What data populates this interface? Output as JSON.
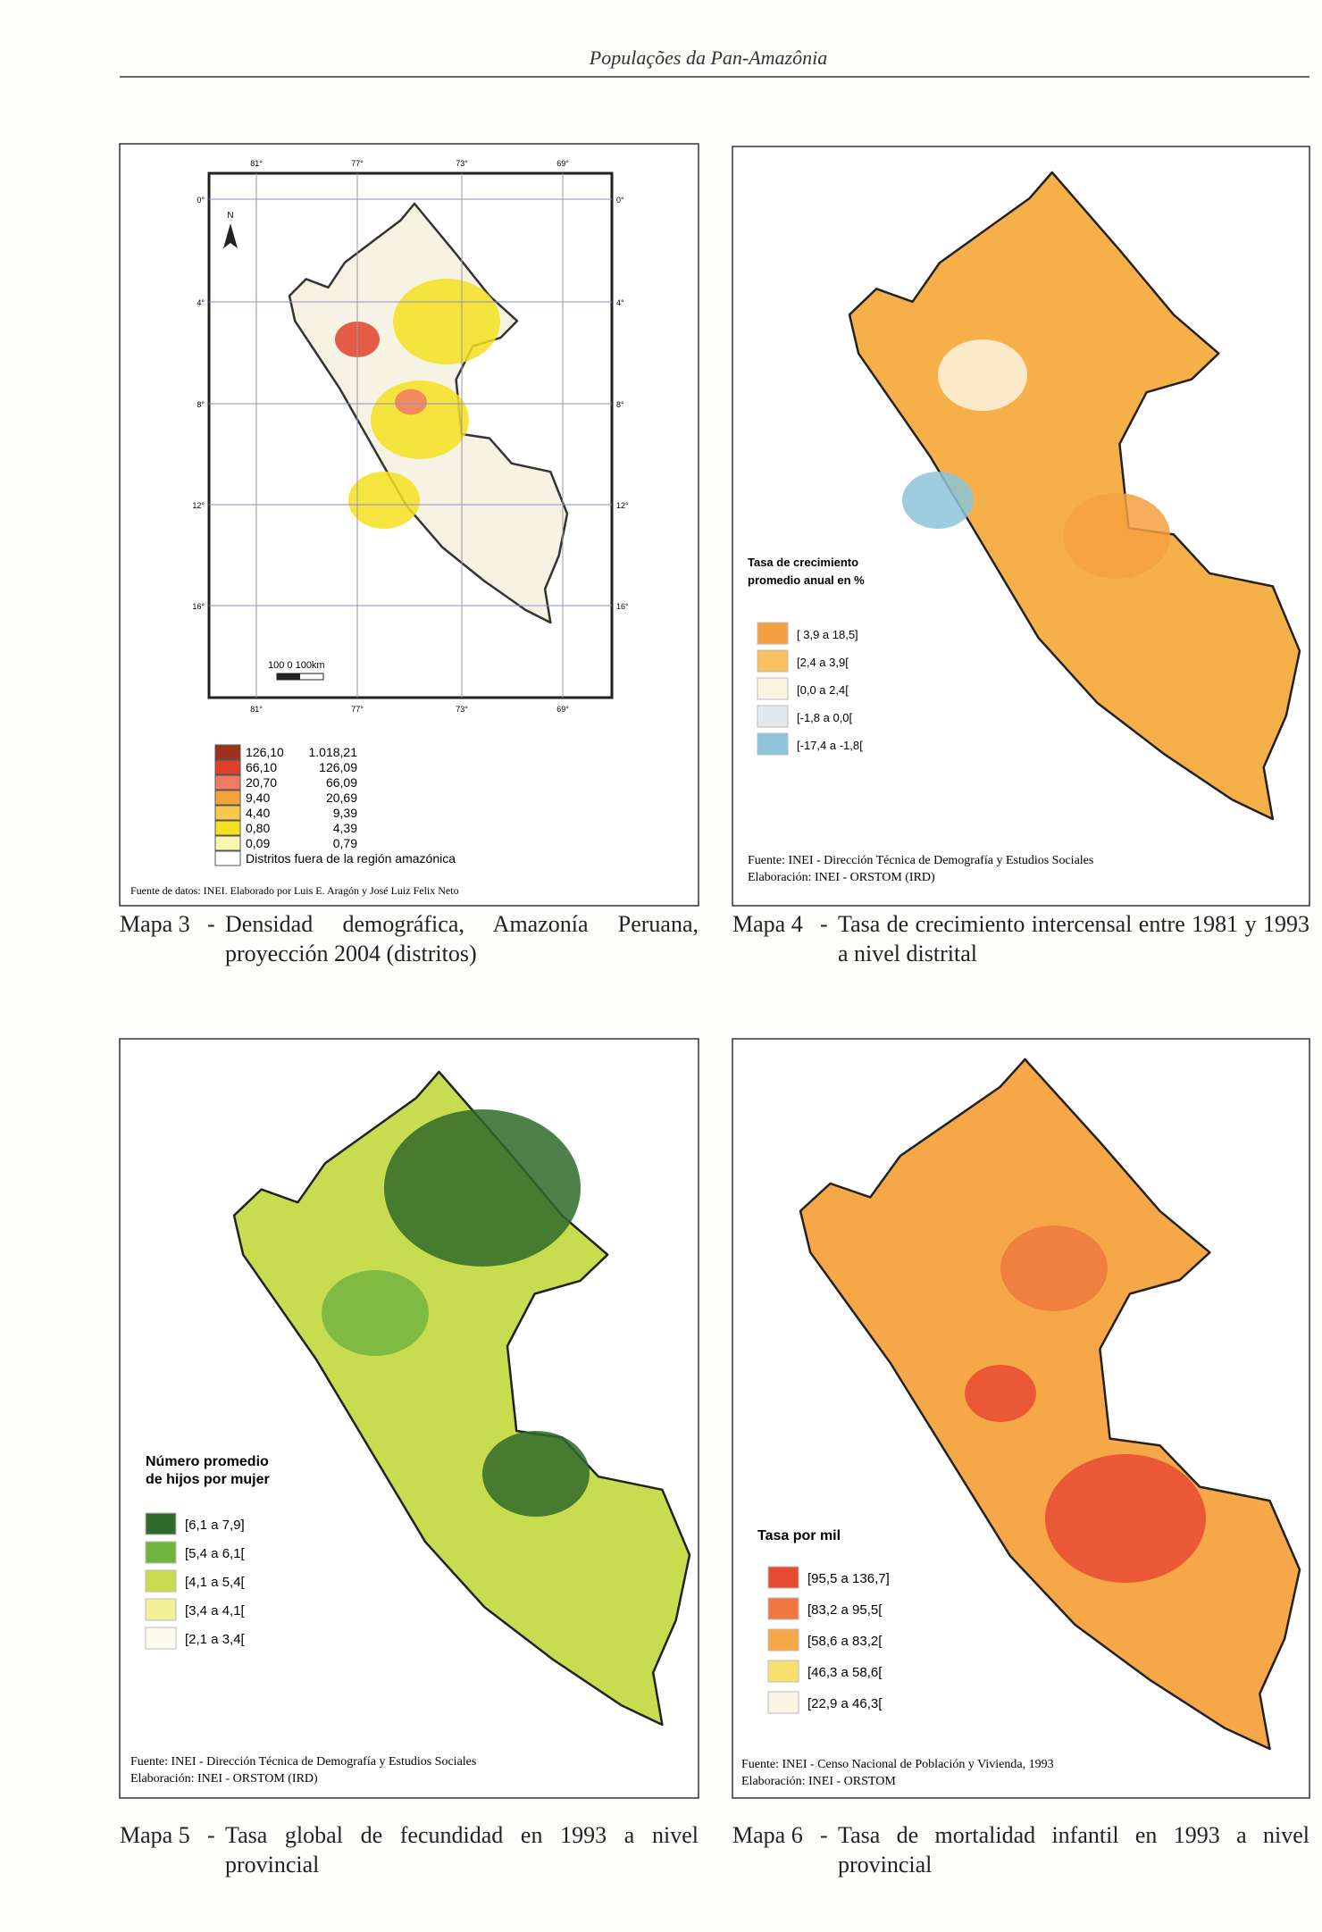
{
  "header": {
    "title": "Populações da Pan-Amazônia"
  },
  "maps": [
    {
      "latitudes": [
        "0°",
        "4°",
        "8°",
        "12°",
        "16°"
      ],
      "longitudes": [
        "81°",
        "77°",
        "73°",
        "69°"
      ],
      "north": "N",
      "scale": "100   0   100km",
      "legend": [
        {
          "from": "126,10",
          "to": "1.018,21",
          "color": "#a0301e"
        },
        {
          "from": "66,10",
          "to": "126,09",
          "color": "#e0402a"
        },
        {
          "from": "20,70",
          "to": "66,09",
          "color": "#f07a62"
        },
        {
          "from": "9,40",
          "to": "20,69",
          "color": "#f6a23a"
        },
        {
          "from": "4,40",
          "to": "9,39",
          "color": "#f8c84a"
        },
        {
          "from": "0,80",
          "to": "4,39",
          "color": "#f5e020"
        },
        {
          "from": "0,09",
          "to": "0,79",
          "color": "#fbf7b0"
        }
      ],
      "legend_note": "Distritos fuera de la región amazónica",
      "source": [
        "Fuente de datos: INEI. Elaborado por Luis E. Aragón y José Luiz Felix Neto"
      ],
      "caption": {
        "label": "Mapa 3",
        "text": "Densidad demográfica, Amazonía Peruana, proyección 2004 (distritos)"
      }
    },
    {
      "legend_title": "Tasa de crecimiento promedio anual en %",
      "legend": [
        {
          "label": "[ 3,9 a 18,5]",
          "color": "#f4a040"
        },
        {
          "label": "[2,4 a 3,9[",
          "color": "#f9c060"
        },
        {
          "label": "[0,0 a 2,4[",
          "color": "#fbf3e0"
        },
        {
          "label": "[-1,8 a 0,0[",
          "color": "#dfe9ef"
        },
        {
          "label": "[-17,4 a -1,8[",
          "color": "#8cc4d8"
        }
      ],
      "source": [
        "Fuente: INEI - Dirección Técnica de Demografía y Estudios Sociales",
        "Elaboración: INEI - ORSTOM (IRD)"
      ],
      "caption": {
        "label": "Mapa 4",
        "text": "Tasa de crecimiento intercensal entre 1981 y 1993 a nivel distrital"
      }
    },
    {
      "legend_title": "Número promedio de hijos por mujer",
      "legend": [
        {
          "label": "[6,1 a 7,9]",
          "color": "#2f6a2a"
        },
        {
          "label": "[5,4 a 6,1[",
          "color": "#72b440"
        },
        {
          "label": "[4,1 a 5,4[",
          "color": "#c8dc50"
        },
        {
          "label": "[3,4 a 4,1[",
          "color": "#f2f098"
        },
        {
          "label": "[2,1 a 3,4[",
          "color": "#fbfbee"
        }
      ],
      "source": [
        "Fuente: INEI - Dirección Técnica de Demografía y Estudios Sociales",
        "Elaboración: INEI - ORSTOM (IRD)"
      ],
      "caption": {
        "label": "Mapa 5",
        "text": "Tasa global de fecundidad en 1993 a nivel provincial"
      }
    },
    {
      "legend_title": "Tasa por mil",
      "legend": [
        {
          "label": "[95,5 a 136,7]",
          "color": "#e84a32"
        },
        {
          "label": "[83,2 a 95,5[",
          "color": "#f07840"
        },
        {
          "label": "[58,6 a 83,2[",
          "color": "#f6a848"
        },
        {
          "label": "[46,3 a 58,6[",
          "color": "#f8e070"
        },
        {
          "label": "[22,9 a 46,3[",
          "color": "#fbf5e6"
        }
      ],
      "source": [
        "Fuente: INEI - Censo Nacional de Población y Vivienda, 1993",
        "Elaboración: INEI - ORSTOM"
      ],
      "caption": {
        "label": "Mapa 6",
        "text": "Tasa de mortalidad infantil en 1993 a nivel provincial"
      }
    }
  ]
}
